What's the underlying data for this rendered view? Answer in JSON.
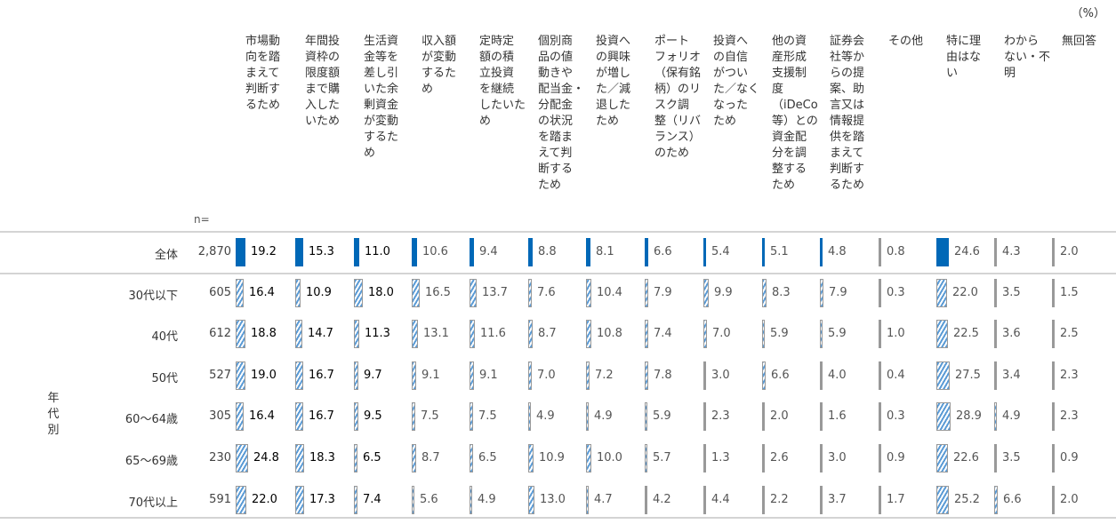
{
  "chart_data": {
    "type": "table",
    "unit": "（%）",
    "n_label": "n=",
    "columns": [
      "市場動\n向を踏\nまえて\n判断す\nるため",
      "年間投\n資枠の\n限度額\nまで購\n入した\nいため",
      "生活資\n金等を\n差し引\nいた余\n剰資金\nが変動\nするた\nめ",
      "収入額\nが変動\nするた\nめ",
      "定時定\n額の積\n立投資\nを継続\nしたいた\nめ",
      "個別商\n品の値\n動きや\n配当金・\n分配金\nの状況\nを踏ま\nえて判\n断する\nため",
      "投資へ\nの興味\nが増し\nた／減\n退した\nため",
      "ポート\nフォリオ\n（保有銘\n柄）のリ\nスク調\n整（リバ\nランス）\nのため",
      "投資へ\nの自信\nがつい\nた／なく\nなった\nため",
      "他の資\n産形成\n支援制\n度\n（iDeCo\n等）との\n資金配\n分を調\n整する\nため",
      "証券会\n社等か\nらの提\n案、助\n言又は\n情報提\n供を踏\nまえて\n判断す\nるため",
      "その他",
      "特に理\n由はな\nい",
      "わから\nない・不\n明",
      "無回答"
    ],
    "group_label": "年\n代\n別",
    "rows": [
      {
        "label": "全体",
        "n": "2,870",
        "values": [
          19.2,
          15.3,
          11.0,
          10.6,
          9.4,
          8.8,
          8.1,
          6.6,
          5.4,
          5.1,
          4.8,
          0.8,
          24.6,
          4.3,
          2.0
        ]
      },
      {
        "label": "30代以下",
        "n": "605",
        "values": [
          16.4,
          10.9,
          18.0,
          16.5,
          13.7,
          7.6,
          10.4,
          7.9,
          9.9,
          8.3,
          7.9,
          0.3,
          22.0,
          3.5,
          1.5
        ]
      },
      {
        "label": "40代",
        "n": "612",
        "values": [
          18.8,
          14.7,
          11.3,
          13.1,
          11.6,
          8.7,
          10.8,
          7.4,
          7.0,
          5.9,
          5.9,
          1.0,
          22.5,
          3.6,
          2.5
        ]
      },
      {
        "label": "50代",
        "n": "527",
        "values": [
          19.0,
          16.7,
          9.7,
          9.1,
          9.1,
          7.0,
          7.2,
          7.8,
          3.0,
          6.6,
          4.0,
          0.4,
          27.5,
          3.4,
          2.3
        ]
      },
      {
        "label": "60～64歳",
        "n": "305",
        "values": [
          16.4,
          16.7,
          9.5,
          7.5,
          7.5,
          4.9,
          4.9,
          5.9,
          2.3,
          2.0,
          1.6,
          0.3,
          28.9,
          4.9,
          2.3
        ]
      },
      {
        "label": "65～69歳",
        "n": "230",
        "values": [
          24.8,
          18.3,
          6.5,
          8.7,
          6.5,
          10.9,
          10.0,
          5.7,
          1.3,
          2.6,
          3.0,
          0.9,
          22.6,
          3.5,
          0.9
        ]
      },
      {
        "label": "70代以上",
        "n": "591",
        "values": [
          22.0,
          17.3,
          7.4,
          5.6,
          4.9,
          13.0,
          4.7,
          4.2,
          4.4,
          2.2,
          3.7,
          1.7,
          25.2,
          6.6,
          2.0
        ]
      }
    ],
    "colors": {
      "overall": "#0068b7",
      "group_hatch": "#5b9bd5",
      "min_bar": "#999999"
    }
  }
}
